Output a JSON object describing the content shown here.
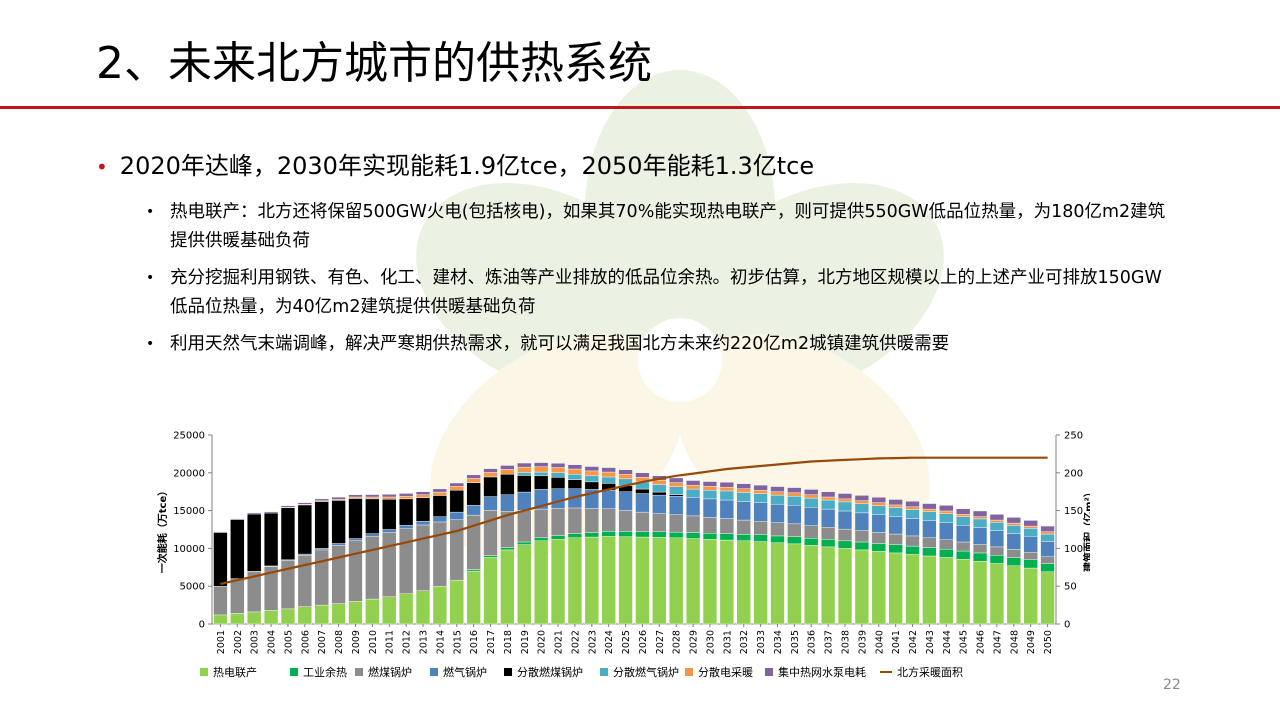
{
  "slide": {
    "title": "2、未来北方城市的供热系统",
    "bullet": "2020年达峰，2030年实现能耗1.9亿tce，2050年能耗1.3亿tce",
    "sub_bullets": [
      "热电联产：北方还将保留500GW火电(包括核电)，如果其70%能实现热电联产，则可提供550GW低品位热量，为180亿m2建筑提供供暖基础负荷",
      "充分挖掘利用钢铁、有色、化工、建材、炼油等产业排放的低品位余热。初步估算，北方地区规模以上的上述产业可排放150GW低品位热量，为40亿m2建筑提供供暖基础负荷",
      "利用天然气末端调峰，解决严寒期供热需求，就可以满足我国北方未来约220亿m2城镇建筑供暖需要"
    ],
    "page_number": "22",
    "accent_color": "#c0161d"
  },
  "chart_data": {
    "type": "bar",
    "stacked": true,
    "categories": [
      "2001",
      "2002",
      "2003",
      "2004",
      "2005",
      "2006",
      "2007",
      "2008",
      "2009",
      "2010",
      "2011",
      "2012",
      "2013",
      "2014",
      "2015",
      "2016",
      "2017",
      "2018",
      "2019",
      "2020",
      "2021",
      "2022",
      "2023",
      "2024",
      "2025",
      "2026",
      "2027",
      "2028",
      "2029",
      "2030",
      "2031",
      "2032",
      "2033",
      "2034",
      "2035",
      "2036",
      "2037",
      "2038",
      "2039",
      "2040",
      "2041",
      "2042",
      "2043",
      "2044",
      "2045",
      "2046",
      "2047",
      "2048",
      "2049",
      "2050"
    ],
    "ylabel": "一次能耗（万tce）",
    "y2label": "建筑面积（亿m²）",
    "ylim": [
      0,
      25000
    ],
    "yticks": [
      0,
      5000,
      10000,
      15000,
      20000,
      25000
    ],
    "y2lim": [
      0,
      250
    ],
    "y2ticks": [
      0,
      50,
      100,
      150,
      200,
      250
    ],
    "grid": false,
    "legend_position": "bottom",
    "series": [
      {
        "name": "热电联产",
        "color": "#92d050",
        "values": [
          1200,
          1400,
          1600,
          1800,
          2000,
          2300,
          2500,
          2700,
          3000,
          3300,
          3600,
          4000,
          4400,
          5000,
          5800,
          7000,
          8800,
          9800,
          10500,
          11000,
          11200,
          11400,
          11500,
          11600,
          11550,
          11500,
          11450,
          11400,
          11300,
          11200,
          11100,
          11000,
          10900,
          10750,
          10600,
          10400,
          10200,
          10000,
          9800,
          9600,
          9400,
          9200,
          9000,
          8800,
          8550,
          8300,
          8000,
          7700,
          7400,
          6900
        ]
      },
      {
        "name": "工业余热",
        "color": "#00b050",
        "values": [
          0,
          0,
          0,
          0,
          0,
          0,
          0,
          0,
          0,
          0,
          0,
          0,
          0,
          0,
          0,
          200,
          250,
          300,
          350,
          400,
          500,
          550,
          600,
          650,
          700,
          700,
          750,
          750,
          800,
          800,
          850,
          850,
          900,
          900,
          950,
          950,
          1000,
          1000,
          1050,
          1050,
          1100,
          1100,
          1100,
          1100,
          1100,
          1100,
          1100,
          1100,
          1100,
          1100
        ]
      },
      {
        "name": "燃煤锅炉",
        "color": "#8c8c8c",
        "values": [
          3800,
          4600,
          5300,
          5800,
          6400,
          6800,
          7300,
          7700,
          8000,
          8300,
          8500,
          8600,
          8700,
          8500,
          8000,
          7200,
          6000,
          4800,
          4200,
          3800,
          3600,
          3400,
          3200,
          3000,
          2800,
          2600,
          2400,
          2300,
          2200,
          2100,
          2000,
          1900,
          1800,
          1750,
          1700,
          1650,
          1600,
          1550,
          1500,
          1450,
          1400,
          1350,
          1300,
          1250,
          1200,
          1150,
          1100,
          1050,
          1000,
          900
        ]
      },
      {
        "name": "燃气锅炉",
        "color": "#4f81bd",
        "values": [
          0,
          0,
          50,
          80,
          100,
          150,
          200,
          250,
          300,
          350,
          400,
          450,
          500,
          700,
          1000,
          1300,
          1800,
          2200,
          2400,
          2600,
          2600,
          2550,
          2500,
          2450,
          2450,
          2450,
          2450,
          2450,
          2450,
          2450,
          2450,
          2450,
          2450,
          2450,
          2450,
          2450,
          2400,
          2400,
          2350,
          2350,
          2300,
          2300,
          2250,
          2250,
          2200,
          2200,
          2150,
          2100,
          2100,
          2000
        ]
      },
      {
        "name": "分散燃煤锅炉",
        "color": "#000000",
        "values": [
          7100,
          7800,
          7600,
          7000,
          6900,
          6500,
          6200,
          5700,
          5300,
          4600,
          4000,
          3500,
          3100,
          2800,
          2900,
          3000,
          2600,
          2700,
          2200,
          1800,
          1500,
          1200,
          1000,
          900,
          800,
          600,
          400,
          200,
          0,
          0,
          0,
          0,
          0,
          0,
          0,
          0,
          0,
          0,
          0,
          0,
          0,
          0,
          0,
          0,
          0,
          0,
          0,
          0,
          0,
          0
        ]
      },
      {
        "name": "分散燃气锅炉",
        "color": "#4bacc6",
        "values": [
          0,
          0,
          0,
          0,
          0,
          0,
          0,
          0,
          0,
          0,
          0,
          0,
          0,
          0,
          0,
          0,
          0,
          0,
          400,
          500,
          600,
          700,
          800,
          850,
          900,
          950,
          1000,
          1050,
          1100,
          1150,
          1200,
          1200,
          1200,
          1200,
          1200,
          1200,
          1200,
          1200,
          1200,
          1200,
          1200,
          1200,
          1200,
          1200,
          1150,
          1150,
          1100,
          1100,
          1050,
          1000
        ]
      },
      {
        "name": "分散电采暖",
        "color": "#f79646",
        "values": [
          0,
          0,
          0,
          0,
          50,
          80,
          100,
          150,
          200,
          250,
          300,
          350,
          400,
          450,
          500,
          550,
          600,
          650,
          700,
          700,
          700,
          700,
          650,
          650,
          600,
          600,
          550,
          550,
          500,
          500,
          500,
          500,
          450,
          450,
          450,
          450,
          400,
          400,
          400,
          400,
          350,
          350,
          350,
          350,
          300,
          300,
          300,
          300,
          300,
          300
        ]
      },
      {
        "name": "集中热网水泵电耗",
        "color": "#8064a2",
        "values": [
          100,
          120,
          150,
          170,
          200,
          220,
          250,
          280,
          300,
          320,
          350,
          370,
          400,
          420,
          450,
          480,
          500,
          520,
          540,
          550,
          560,
          570,
          580,
          590,
          600,
          600,
          610,
          620,
          630,
          640,
          650,
          660,
          670,
          680,
          690,
          700,
          700,
          710,
          710,
          720,
          720,
          730,
          730,
          740,
          740,
          750,
          750,
          750,
          750,
          750
        ]
      }
    ],
    "line_series": {
      "name": "北方采暖面积",
      "color": "#984807",
      "axis": "right",
      "values": [
        53,
        58,
        63,
        68,
        73,
        78,
        83,
        88,
        93,
        98,
        103,
        108,
        113,
        118,
        123,
        130,
        137,
        144,
        150,
        156,
        162,
        168,
        173,
        178,
        183,
        188,
        192,
        196,
        199,
        202,
        205,
        207,
        209,
        211,
        213,
        215,
        216,
        217,
        218,
        219,
        219.5,
        220,
        220,
        220,
        220,
        220,
        220,
        220,
        220,
        220
      ]
    }
  }
}
